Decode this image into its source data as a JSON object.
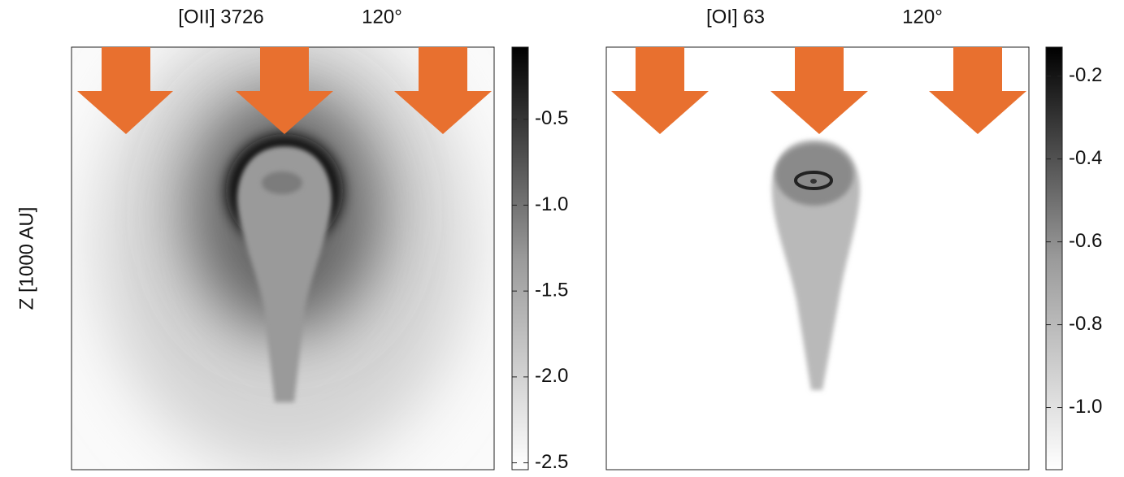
{
  "chart_data": [
    {
      "type": "image",
      "title": "[OII] 3726",
      "subtitle": "120°",
      "ylabel": "Z [1000 AU]",
      "colorbar": {
        "clim": [
          -2.54,
          -0.08
        ],
        "ticks": [
          -0.5,
          {
            "value": -1.0,
            "label": "-1.0"
          },
          -1.5,
          {
            "value": -2.0,
            "label": "-2.0"
          },
          -2.5
        ]
      }
    },
    {
      "type": "image",
      "title": "[OI] 63",
      "subtitle": "120°",
      "colorbar": {
        "clim": [
          -1.15,
          -0.13
        ],
        "ticks": [
          -0.2,
          -0.4,
          -0.6,
          -0.8,
          {
            "value": -1.0,
            "label": "-1.0"
          }
        ]
      }
    }
  ]
}
